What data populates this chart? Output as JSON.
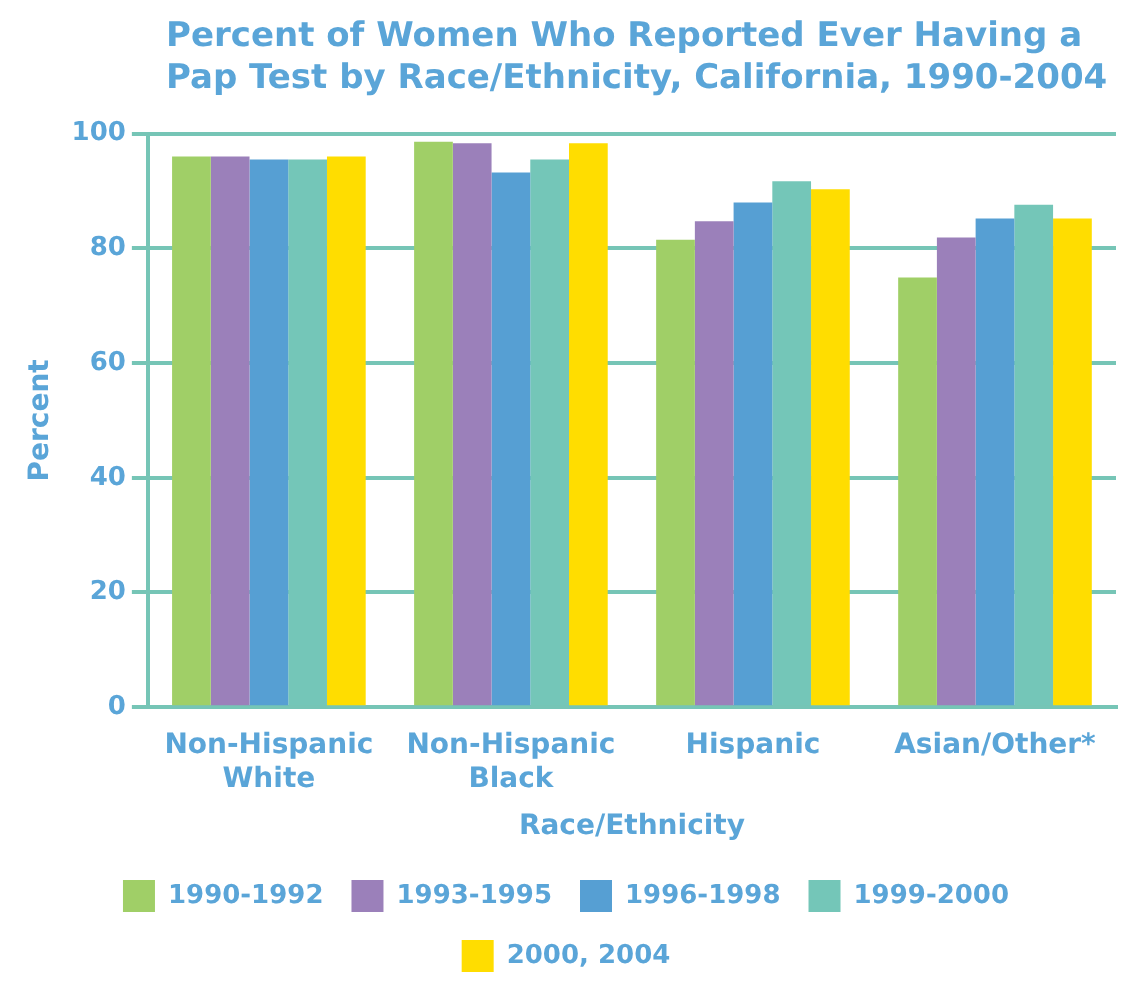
{
  "chart_data": {
    "type": "bar",
    "title": "Percent of Women Who Reported Ever Having a Pap Test by Race/Ethnicity, California, 1990-2004",
    "xlabel": "Race/Ethnicity",
    "ylabel": "Percent",
    "categories": [
      "Non-Hispanic White",
      "Non-Hispanic Black",
      "Hispanic",
      "Asian/Other*"
    ],
    "series": [
      {
        "name": "1990-1992",
        "color": "#a0cf67",
        "values": [
          96.0,
          98.6,
          81.5,
          74.9
        ]
      },
      {
        "name": "1993-1995",
        "color": "#9b80ba",
        "values": [
          96.0,
          98.3,
          84.7,
          81.9
        ]
      },
      {
        "name": "1996-1998",
        "color": "#569fd3",
        "values": [
          95.5,
          93.2,
          88.0,
          85.2
        ]
      },
      {
        "name": "1999-2000",
        "color": "#74c6b8",
        "values": [
          95.5,
          95.5,
          91.7,
          87.6
        ]
      },
      {
        "name": "2000, 2004",
        "color": "#ffdd00",
        "values": [
          96.0,
          98.3,
          90.3,
          85.2
        ]
      }
    ],
    "ylim": [
      0,
      100
    ],
    "yticks": [
      0,
      20,
      40,
      60,
      80,
      100
    ],
    "grid": "y",
    "legend": "bottom"
  }
}
